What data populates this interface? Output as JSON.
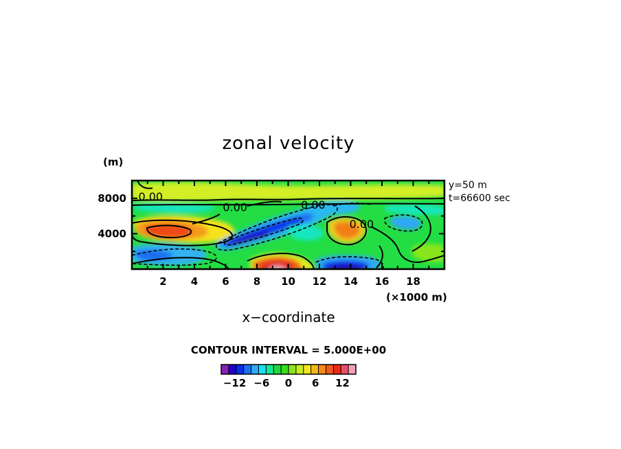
{
  "chart_data": {
    "type": "heatmap",
    "title": "zonal velocity",
    "xlabel": "x−coordinate",
    "ylabel": "(m)",
    "x_unit": "(×1000 m)",
    "xlim": [
      0,
      20
    ],
    "ylim": [
      0,
      10000
    ],
    "x_ticks": [
      "2",
      "4",
      "6",
      "8",
      "10",
      "12",
      "14",
      "16",
      "18"
    ],
    "y_ticks": [
      "8000",
      "4000"
    ],
    "annotations": [
      "y=50 m",
      "t=66600 sec"
    ],
    "contour_interval_label": "CONTOUR INTERVAL = 5.000E+00",
    "contour_labels": [
      {
        "text": "0.00",
        "x": 1.2,
        "y": 8200
      },
      {
        "text": "0.00",
        "x": 6.6,
        "y": 7000
      },
      {
        "text": "0.00",
        "x": 11.6,
        "y": 7300
      },
      {
        "text": "0.00",
        "x": 14.7,
        "y": 5100
      }
    ],
    "colorbar": {
      "min": -15,
      "max": 15,
      "tick_labels": [
        "−12",
        "−6",
        "0",
        "6",
        "12"
      ],
      "colors": [
        "#8a1fb5",
        "#2200c8",
        "#0a2ee6",
        "#1e6ef2",
        "#2fa8f5",
        "#19e0f0",
        "#16e69a",
        "#1ed83c",
        "#38dd1e",
        "#88e61e",
        "#c8ee1e",
        "#f3e61e",
        "#f7b61c",
        "#f58a1a",
        "#f25a18",
        "#ec2a16",
        "#e8506a",
        "#f2a0b8"
      ]
    },
    "colors": {
      "background": "#22dd44",
      "frame": "#000000"
    }
  }
}
